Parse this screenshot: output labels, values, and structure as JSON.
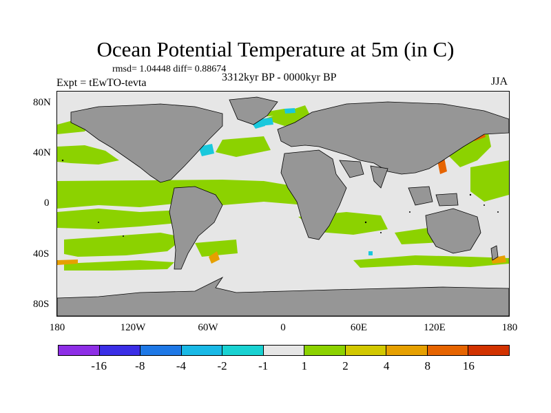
{
  "title": "Ocean Potential Temperature at 5m (in C)",
  "stats": "rmsd= 1.04448  diff= 0.88674",
  "experiment": "Expt = tEwTO-tevta",
  "period": "3312kyr BP - 0000kyr BP",
  "season": "JJA",
  "lat_labels": [
    "80N",
    "40N",
    "0",
    "40S",
    "80S"
  ],
  "lon_labels": [
    "180",
    "120W",
    "60W",
    "0",
    "60E",
    "120E",
    "180"
  ],
  "legend": {
    "labels": [
      "-16",
      "-8",
      "-4",
      "-2",
      "-1",
      "1",
      "2",
      "4",
      "8",
      "16"
    ],
    "colors": [
      "#8e2ee6",
      "#3b2ee6",
      "#1e78e6",
      "#19b9e6",
      "#19d2d2",
      "#e6e6e6",
      "#8cd200",
      "#d2c800",
      "#e6a000",
      "#e66400",
      "#d23200"
    ]
  },
  "map_colors": {
    "land": "#969696",
    "ocean_neutral": "#e6e6e6",
    "warm_1_2": "#8cd200",
    "warm_2_4": "#d2c800",
    "warm_4_8": "#e6a000",
    "warm_8_16": "#e66400",
    "cool": "#19c8dc"
  }
}
